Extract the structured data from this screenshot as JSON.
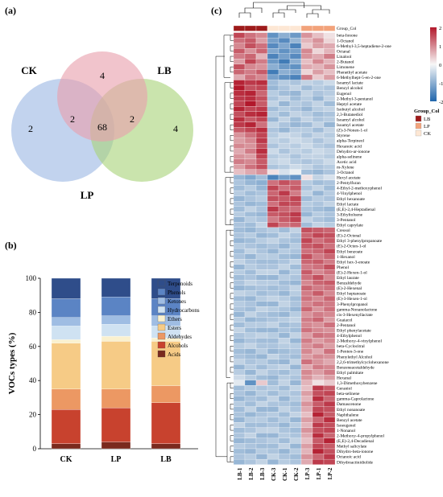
{
  "panels": {
    "a": "(a)",
    "b": "(b)",
    "c": "(c)"
  },
  "chart_data": [
    {
      "type": "venn",
      "sets": [
        {
          "name": "CK",
          "color": "#9db8e3"
        },
        {
          "name": "LB",
          "color": "#a9d37a"
        },
        {
          "name": "LP",
          "color": "#e9a0ad"
        }
      ],
      "regions": {
        "CK_only": 2,
        "LB_only": 4,
        "LP_only": 4,
        "CK_LP": 2,
        "LP_LB": 2,
        "all": 68
      }
    },
    {
      "type": "bar",
      "stacked": true,
      "ylabel": "VOCs types (%)",
      "ylim": [
        0,
        100
      ],
      "yticks": [
        0,
        20,
        40,
        60,
        80,
        100
      ],
      "categories": [
        "CK",
        "LP",
        "LB"
      ],
      "series": [
        {
          "name": "Acids",
          "color": "#7a2a1e",
          "values": [
            3,
            4,
            3
          ]
        },
        {
          "name": "Alcohols",
          "color": "#c8422e",
          "values": [
            20,
            20,
            24
          ]
        },
        {
          "name": "Aldehydes",
          "color": "#ec9863",
          "values": [
            12,
            11,
            10
          ]
        },
        {
          "name": "Esters",
          "color": "#f6cb86",
          "values": [
            27,
            28,
            26
          ]
        },
        {
          "name": "Ethers",
          "color": "#faf1cf",
          "values": [
            2,
            3,
            2
          ]
        },
        {
          "name": "Hydrocarbons",
          "color": "#cfe2f2",
          "values": [
            8,
            7,
            7
          ]
        },
        {
          "name": "Ketones",
          "color": "#9fbde3",
          "values": [
            5,
            5,
            6
          ]
        },
        {
          "name": "Phenols",
          "color": "#5b84c4",
          "values": [
            11,
            11,
            10
          ]
        },
        {
          "name": "Terpenoids",
          "color": "#2f4d8a",
          "values": [
            12,
            11,
            12
          ]
        }
      ]
    },
    {
      "type": "heatmap",
      "colorbar": {
        "ticks": [
          "2",
          "1",
          "0",
          "-1",
          "-2"
        ],
        "colors": [
          "#b2182b",
          "#f7f7f7",
          "#2166ac"
        ]
      },
      "group_legend_title": "Group_Col",
      "group_row_label": "Group_Col",
      "groups": [
        {
          "name": "LB",
          "color": "#9e1b1b"
        },
        {
          "name": "LP",
          "color": "#f2a37b"
        },
        {
          "name": "CK",
          "color": "#fde7d4"
        }
      ],
      "columns": [
        "LB-1",
        "LB-2",
        "LB-3",
        "CK-3",
        "CK-1",
        "CK-2",
        "LP-3",
        "LP-1",
        "LP-2"
      ],
      "column_groups": [
        "LB",
        "LB",
        "LB",
        "CK",
        "CK",
        "CK",
        "LP",
        "LP",
        "LP"
      ],
      "rows": [
        "beta-Ionone",
        "1-Octanol",
        "6-Methyl-3,5-heptadiene-2-one",
        "Octanal",
        "Linalool",
        "2-Butanol",
        "Limonene",
        "Phenethyl acetate",
        "6-Methylhept-5-en-2-one",
        "Isoamyl lactate",
        "Benzyl alcohol",
        "Eugenol",
        "2-Methyl-3-pentanol",
        "Heptyl acetate",
        "Isobutyl alcohol",
        "2,3-Butanediol",
        "Isoamyl alcohol",
        "Isoamyl acetate",
        "(Z)-3-Nonen-1-ol",
        "Styrene",
        "alpha-Terpineol",
        "Hexanoic acid",
        "Dehydro-ar-ionone",
        "alpha-selinene",
        "Acetic acid",
        "m-Xylene",
        "3-Octanol",
        "Hexyl acetate",
        "2-Pentylfuran",
        "4-Ethyl-2-methoxyphenol",
        "4-Vinylphenol",
        "Ethyl hexanoate",
        "Ethyl lactate",
        "(E,E)-2,4-Heptadienal",
        "3-Ethyltoluene",
        "3-Pentanol",
        "Ethyl caprylate",
        "Creosol",
        "(E)-2-Octenal",
        "Ethyl 3-phenylpropanoate",
        "(E)-2-Octen-1-ol",
        "Ethyl benzoate",
        "1-Hexanol",
        "Ethyl hex-3-enoate",
        "Phenol",
        "(E)-2-Hexen-1-ol",
        "Ethyl laurate",
        "Benzaldehyde",
        "(E)-2-Hexenal",
        "Ethyl heptanoate",
        "(E)-3-Hexen-1-ol",
        "3-Phenylpropanol",
        "gamma-Nonanolactone",
        "cis-3-Hexenyllactate",
        "Guaiacol",
        "2-Pentanol",
        "Ethyl phenylacetate",
        "4-Ethylphenol",
        "2-Methoxy-4-vinylphenol",
        "beta-Cyclocitral",
        "1-Penten-3-one",
        "Phenylethyl Alcohol",
        "2,2,6-trimethylcyclohexanone",
        "Benzeneacetaldehyde",
        "Ethyl palmitate",
        "Hexanal",
        "1,3-Dimethoxybenzene",
        "Geraniol",
        "beta-selinene",
        "gamma-Caprolactone",
        "Damascenone",
        "Ethyl nonanoate",
        "Naphthalene",
        "Benzyl acetate",
        "Isoeugenol",
        "1-Nonanol",
        "2-Methoxy-4-propylphenol",
        "(E,E)-2,4-Decadienal",
        "Methyl salicylate",
        "Dihydro-beta-ionone",
        "Octanoic acid",
        "Dihydroactinidiolide"
      ],
      "values": [
        [
          1.6,
          1.2,
          1.0,
          -1.4,
          -1.0,
          -1.3,
          0.9,
          0.5,
          0.2
        ],
        [
          1.2,
          1.4,
          0.8,
          -1.2,
          -1.5,
          -0.9,
          0.6,
          0.9,
          0.3
        ],
        [
          1.0,
          1.5,
          1.2,
          -1.5,
          -1.1,
          -1.6,
          0.4,
          0.8,
          0.7
        ],
        [
          1.4,
          0.9,
          1.3,
          -1.1,
          -1.4,
          -1.2,
          1.0,
          0.3,
          0.6
        ],
        [
          1.1,
          1.3,
          0.6,
          -1.6,
          -1.2,
          -1.5,
          0.9,
          0.7,
          1.1
        ],
        [
          0.8,
          1.6,
          1.1,
          -1.3,
          -1.7,
          -1.0,
          0.5,
          1.0,
          0.6
        ],
        [
          1.5,
          1.0,
          0.9,
          -1.0,
          -1.3,
          -1.4,
          0.7,
          0.6,
          0.9
        ],
        [
          1.3,
          1.1,
          1.4,
          -1.7,
          -1.0,
          -1.1,
          0.3,
          0.8,
          0.5
        ],
        [
          0.7,
          1.2,
          1.0,
          -1.2,
          -1.4,
          -1.6,
          1.1,
          0.4,
          0.8
        ],
        [
          1.9,
          1.7,
          1.8,
          -0.8,
          -0.6,
          -0.7,
          -0.5,
          -0.6,
          -0.4
        ],
        [
          2.0,
          1.5,
          1.6,
          -0.9,
          -0.7,
          -0.5,
          -0.8,
          -0.6,
          -0.7
        ],
        [
          1.8,
          1.9,
          1.3,
          -0.6,
          -0.8,
          -0.9,
          -0.5,
          -0.7,
          -0.6
        ],
        [
          1.7,
          1.8,
          1.5,
          -0.7,
          -0.5,
          -0.8,
          -0.6,
          -0.9,
          -0.5
        ],
        [
          1.6,
          2.0,
          1.4,
          -0.5,
          -0.9,
          -0.6,
          -0.7,
          -0.5,
          -0.8
        ],
        [
          1.9,
          1.6,
          1.7,
          -0.8,
          -0.6,
          -0.7,
          -0.9,
          -0.6,
          -0.5
        ],
        [
          1.5,
          1.8,
          1.9,
          -0.6,
          -0.8,
          -0.5,
          -0.6,
          -0.8,
          -0.7
        ],
        [
          1.8,
          1.4,
          1.6,
          -0.9,
          -0.5,
          -0.8,
          -0.5,
          -0.7,
          -0.6
        ],
        [
          1.7,
          1.9,
          1.2,
          -0.5,
          -0.7,
          -0.9,
          -0.8,
          -0.5,
          -0.9
        ],
        [
          1.4,
          1.6,
          1.8,
          -0.7,
          -0.9,
          -0.6,
          -0.6,
          -0.8,
          -0.5
        ],
        [
          0.9,
          1.2,
          1.6,
          -0.6,
          -0.4,
          -0.5,
          -0.7,
          -0.5,
          -0.6
        ],
        [
          0.8,
          1.0,
          1.7,
          -0.5,
          -0.6,
          -0.4,
          -0.5,
          -0.7,
          -0.5
        ],
        [
          1.0,
          0.9,
          1.5,
          -0.7,
          -0.5,
          -0.6,
          -0.4,
          -0.6,
          -0.7
        ],
        [
          0.7,
          1.1,
          1.8,
          -0.4,
          -0.7,
          -0.5,
          -0.6,
          -0.4,
          -0.5
        ],
        [
          0.9,
          0.8,
          1.6,
          -0.6,
          -0.5,
          -0.7,
          -0.5,
          -0.5,
          -0.6
        ],
        [
          1.1,
          1.0,
          1.4,
          -0.5,
          -0.4,
          -0.6,
          -0.7,
          -0.6,
          -0.4
        ],
        [
          0.8,
          1.2,
          1.5,
          -0.7,
          -0.6,
          -0.4,
          -0.5,
          -0.7,
          -0.6
        ],
        [
          0.5,
          0.7,
          0.9,
          0.2,
          -0.3,
          -0.1,
          -0.8,
          -0.9,
          -0.7
        ],
        [
          -0.9,
          -1.1,
          -0.8,
          -1.6,
          -1.2,
          -1.4,
          0.2,
          -0.5,
          -0.3
        ],
        [
          -0.7,
          -0.9,
          -1.0,
          1.2,
          1.5,
          1.3,
          -0.6,
          -0.8,
          -0.7
        ],
        [
          -0.8,
          -0.6,
          -0.9,
          1.6,
          1.2,
          1.4,
          -0.7,
          -0.5,
          -0.8
        ],
        [
          -0.6,
          -0.8,
          -0.7,
          1.3,
          1.7,
          1.1,
          -0.5,
          -0.9,
          -0.6
        ],
        [
          -0.9,
          -0.7,
          -0.6,
          1.5,
          1.4,
          1.6,
          -0.8,
          -0.6,
          -0.7
        ],
        [
          -0.7,
          -0.9,
          -0.8,
          1.2,
          1.6,
          1.5,
          -0.6,
          -0.7,
          -0.5
        ],
        [
          -0.8,
          -0.5,
          -0.7,
          1.7,
          1.3,
          1.2,
          -0.7,
          -0.8,
          -0.9
        ],
        [
          -0.6,
          -0.8,
          -0.9,
          1.4,
          1.5,
          1.7,
          -0.9,
          -0.6,
          -0.7
        ],
        [
          -0.9,
          -0.6,
          -0.7,
          1.1,
          1.4,
          1.6,
          -0.5,
          -0.7,
          -0.8
        ],
        [
          -0.7,
          -0.8,
          -0.5,
          1.6,
          1.2,
          1.3,
          -0.8,
          -0.5,
          -0.6
        ],
        [
          -0.8,
          -0.9,
          -0.7,
          -0.6,
          -0.8,
          -0.5,
          1.5,
          1.4,
          1.3
        ],
        [
          -0.7,
          -0.6,
          -0.9,
          -0.8,
          -0.5,
          -0.7,
          1.3,
          1.6,
          1.5
        ],
        [
          -0.9,
          -0.8,
          -0.6,
          -0.5,
          -0.7,
          -0.8,
          1.6,
          1.2,
          1.4
        ],
        [
          -0.6,
          -0.7,
          -0.8,
          -0.7,
          -0.9,
          -0.6,
          1.4,
          1.5,
          1.2
        ],
        [
          -0.8,
          -0.5,
          -0.7,
          -0.9,
          -0.6,
          -0.7,
          1.2,
          1.3,
          1.6
        ],
        [
          -0.7,
          -0.9,
          -0.6,
          -0.6,
          -0.8,
          -0.9,
          1.5,
          1.1,
          1.3
        ],
        [
          -0.5,
          -0.7,
          -0.8,
          -0.8,
          -0.7,
          -0.5,
          1.3,
          1.4,
          1.1
        ],
        [
          -0.9,
          -0.6,
          -0.7,
          -0.7,
          -0.5,
          -0.8,
          1.1,
          1.2,
          1.5
        ],
        [
          -0.6,
          -0.8,
          -0.5,
          -0.5,
          -0.9,
          -0.6,
          1.4,
          1.0,
          1.2
        ],
        [
          -0.8,
          -0.7,
          -0.9,
          -0.9,
          -0.6,
          -0.7,
          1.2,
          1.5,
          1.0
        ],
        [
          -0.7,
          -0.5,
          -0.6,
          -0.6,
          -0.8,
          -0.9,
          1.0,
          1.3,
          1.4
        ],
        [
          -0.9,
          -0.8,
          -0.7,
          -0.8,
          -0.7,
          -0.5,
          1.3,
          1.1,
          1.2
        ],
        [
          -0.5,
          -0.6,
          -0.8,
          -0.7,
          -0.9,
          -0.6,
          1.1,
          1.4,
          1.0
        ],
        [
          -0.8,
          -0.9,
          -0.6,
          -0.5,
          -0.6,
          -0.8,
          1.2,
          1.0,
          1.3
        ],
        [
          -0.6,
          -0.7,
          -0.9,
          -0.9,
          -0.5,
          -0.7,
          1.0,
          1.2,
          1.1
        ],
        [
          -0.7,
          -0.8,
          -0.5,
          -0.6,
          -0.7,
          -0.9,
          1.3,
          0.9,
          1.2
        ],
        [
          -0.9,
          -0.5,
          -0.7,
          -0.8,
          -0.9,
          -0.6,
          0.9,
          1.1,
          1.0
        ],
        [
          -0.6,
          -0.9,
          -0.8,
          -0.7,
          -0.6,
          -0.5,
          1.1,
          1.3,
          0.8
        ],
        [
          -0.8,
          -0.6,
          -0.6,
          -0.5,
          -0.8,
          -0.7,
          1.0,
          0.9,
          1.2
        ],
        [
          -0.5,
          -0.8,
          -0.9,
          -0.9,
          -0.7,
          -0.8,
          1.2,
          1.0,
          0.9
        ],
        [
          -0.7,
          -0.6,
          -0.5,
          -0.6,
          -0.9,
          -0.5,
          0.8,
          1.2,
          1.1
        ],
        [
          -0.9,
          -0.7,
          -0.8,
          -0.8,
          -0.5,
          -0.9,
          1.1,
          0.8,
          1.0
        ],
        [
          -0.6,
          -0.5,
          -0.7,
          -0.7,
          -0.6,
          -0.6,
          0.9,
          1.1,
          0.8
        ],
        [
          -0.8,
          -0.9,
          -0.6,
          -0.9,
          -0.8,
          -0.7,
          1.0,
          0.7,
          1.2
        ],
        [
          -0.7,
          -0.8,
          -0.9,
          -0.5,
          -0.7,
          -0.8,
          0.8,
          1.0,
          0.9
        ],
        [
          -0.5,
          -0.7,
          -0.6,
          -0.8,
          -0.9,
          -0.5,
          1.2,
          0.9,
          0.7
        ],
        [
          -0.9,
          -0.6,
          -0.8,
          -0.6,
          -0.5,
          -0.9,
          0.7,
          1.1,
          1.0
        ],
        [
          -0.6,
          -0.9,
          -0.5,
          -0.7,
          -0.8,
          -0.6,
          1.0,
          0.8,
          1.1
        ],
        [
          -0.4,
          -0.6,
          -0.8,
          -0.9,
          -0.6,
          -0.7,
          0.9,
          0.6,
          0.8
        ],
        [
          -0.2,
          -1.4,
          0.4,
          -0.8,
          -0.5,
          -0.9,
          0.6,
          0.2,
          0.4
        ],
        [
          -0.8,
          -0.6,
          -0.7,
          -0.6,
          -0.8,
          -0.5,
          0.5,
          1.7,
          1.4
        ],
        [
          -0.7,
          -0.9,
          -0.6,
          -0.8,
          -0.6,
          -0.7,
          0.8,
          1.5,
          1.6
        ],
        [
          -0.9,
          -0.7,
          -0.8,
          -0.5,
          -0.9,
          -0.6,
          0.6,
          1.8,
          1.3
        ],
        [
          -0.6,
          -0.8,
          -0.5,
          -0.7,
          -0.7,
          -0.8,
          0.9,
          1.4,
          1.7
        ],
        [
          -0.8,
          -0.5,
          -0.9,
          -0.9,
          -0.5,
          -0.7,
          0.7,
          1.6,
          1.5
        ],
        [
          -0.7,
          -0.9,
          -0.7,
          -0.6,
          -0.8,
          -0.5,
          0.5,
          1.9,
          1.4
        ],
        [
          -0.9,
          -0.6,
          -0.6,
          -0.8,
          -0.6,
          -0.9,
          0.8,
          1.3,
          1.8
        ],
        [
          -0.5,
          -0.8,
          -0.8,
          -0.7,
          -0.9,
          -0.6,
          0.6,
          1.7,
          1.5
        ],
        [
          -0.8,
          -0.7,
          -0.5,
          -0.5,
          -0.7,
          -0.8,
          0.9,
          1.5,
          1.6
        ],
        [
          -0.7,
          -0.5,
          -0.9,
          -0.9,
          -0.6,
          -0.7,
          0.7,
          1.8,
          1.3
        ],
        [
          -0.9,
          -0.8,
          -0.7,
          -0.6,
          -0.8,
          -0.5,
          0.5,
          1.4,
          1.9
        ],
        [
          -0.6,
          -0.7,
          -0.8,
          -0.8,
          -0.5,
          -0.9,
          0.8,
          1.6,
          1.4
        ],
        [
          -0.8,
          -0.9,
          -0.6,
          -0.7,
          -0.9,
          -0.6,
          0.6,
          1.9,
          1.5
        ],
        [
          -0.7,
          -0.6,
          -0.9,
          -0.5,
          -0.7,
          -0.8,
          0.9,
          1.3,
          1.7
        ],
        [
          -0.9,
          -0.7,
          -0.5,
          -0.9,
          -0.6,
          -0.7,
          0.7,
          1.7,
          1.6
        ]
      ]
    }
  ]
}
